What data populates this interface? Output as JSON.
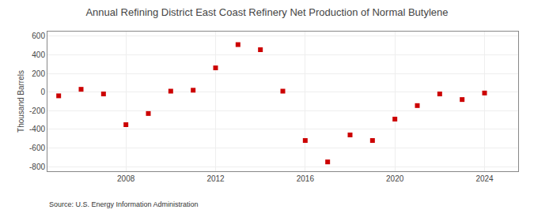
{
  "chart_data": {
    "type": "scatter",
    "title": "Annual Refining District East Coast Refinery Net Production of Normal Butylene",
    "ylabel": "Thousand Barrels",
    "annotations": [
      "Source: U.S. Energy Information Administration"
    ],
    "x": [
      2005,
      2006,
      2007,
      2008,
      2009,
      2010,
      2011,
      2012,
      2013,
      2014,
      2015,
      2016,
      2017,
      2018,
      2019,
      2020,
      2021,
      2022,
      2023,
      2024
    ],
    "values": [
      -40,
      30,
      -20,
      -350,
      -230,
      10,
      20,
      260,
      510,
      455,
      10,
      -520,
      -750,
      -460,
      -520,
      -290,
      -145,
      -20,
      -80,
      -10
    ],
    "color": "#cc0000",
    "marker": "square",
    "xlim": [
      2004.5,
      2025.5
    ],
    "xticks": [
      2008,
      2012,
      2016,
      2020,
      2024
    ],
    "ylim": [
      -850,
      650
    ],
    "yticks": [
      -800,
      -600,
      -400,
      -200,
      0,
      200,
      400,
      600
    ],
    "grid": true
  }
}
